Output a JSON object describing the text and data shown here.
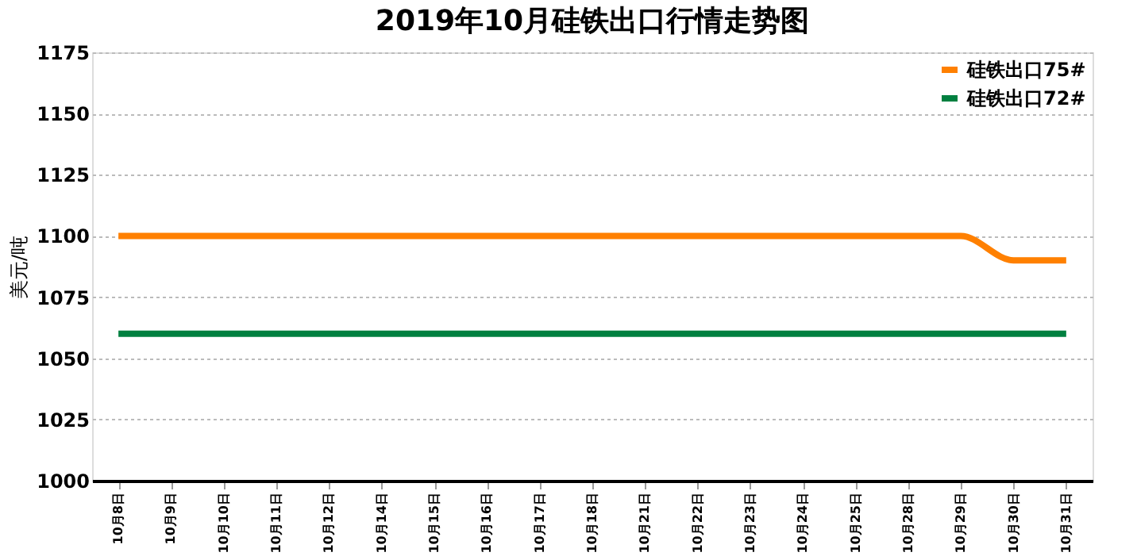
{
  "chart_data": {
    "type": "line",
    "title": "2019年10月硅铁出口行情走势图",
    "ylabel": "美元/吨",
    "categories": [
      "10月8日",
      "10月9日",
      "10月10日",
      "10月11日",
      "10月12日",
      "10月14日",
      "10月15日",
      "10月16日",
      "10月17日",
      "10月18日",
      "10月21日",
      "10月22日",
      "10月23日",
      "10月24日",
      "10月25日",
      "10月28日",
      "10月29日",
      "10月30日",
      "10月31日"
    ],
    "series": [
      {
        "name": "硅铁出口75#",
        "color": "#ff8000",
        "values": [
          1100,
          1100,
          1100,
          1100,
          1100,
          1100,
          1100,
          1100,
          1100,
          1100,
          1100,
          1100,
          1100,
          1100,
          1100,
          1100,
          1100,
          1090,
          1090
        ]
      },
      {
        "name": "硅铁出口72#",
        "color": "#008040",
        "values": [
          1060,
          1060,
          1060,
          1060,
          1060,
          1060,
          1060,
          1060,
          1060,
          1060,
          1060,
          1060,
          1060,
          1060,
          1060,
          1060,
          1060,
          1060,
          1060
        ]
      }
    ],
    "ylim": [
      1000,
      1175
    ],
    "yticks": [
      1000,
      1025,
      1050,
      1075,
      1100,
      1125,
      1150,
      1175
    ],
    "grid": "y",
    "legend": "top right",
    "marker": "none",
    "line_style": "solid"
  }
}
